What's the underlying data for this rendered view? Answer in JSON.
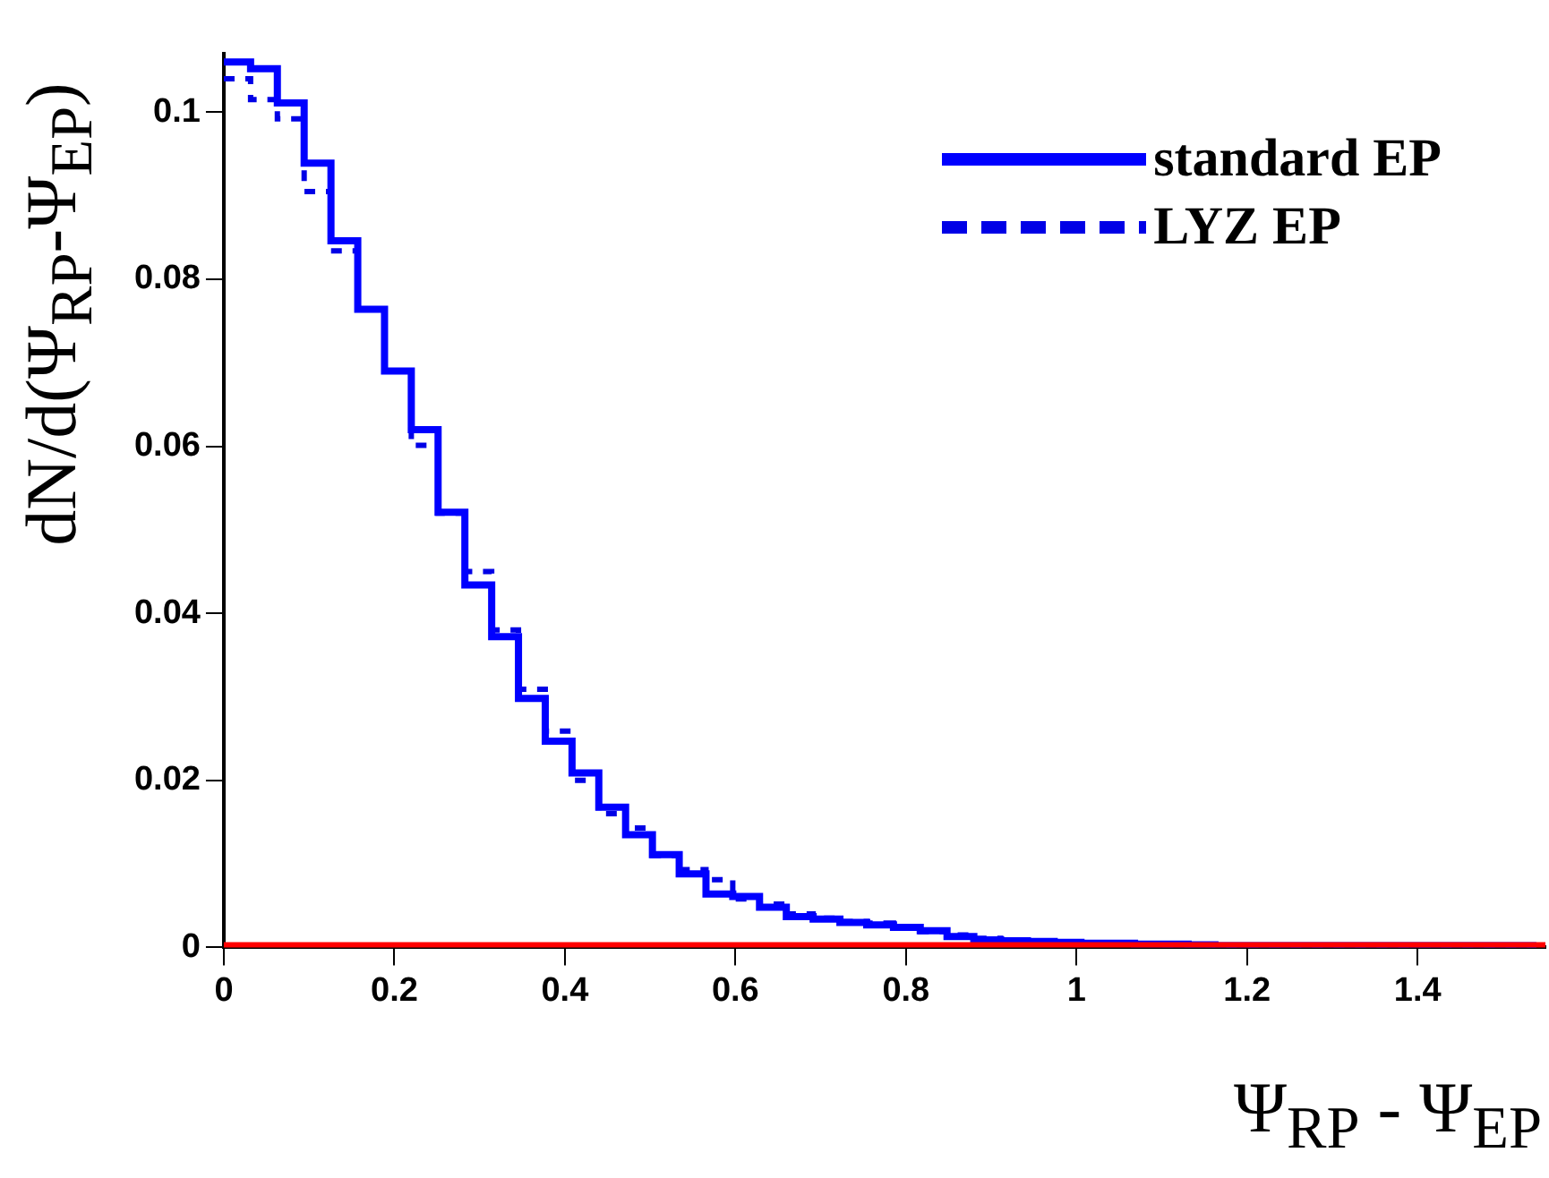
{
  "chart_data": {
    "type": "histogram",
    "xlabel": "Ψ$_{RP}$ - Ψ$_{EP}$",
    "ylabel": "dN/d(Ψ$_{RP}$-Ψ$_{EP}$)",
    "bins": [
      0,
      0.0314,
      0.0628,
      0.0942,
      0.1257,
      0.1571,
      0.1885,
      0.2199,
      0.2513,
      0.2827,
      0.3142,
      0.3456,
      0.377,
      0.4084,
      0.4398,
      0.4712,
      0.5027,
      0.5341,
      0.5655,
      0.5969,
      0.6283,
      0.6597,
      0.6912,
      0.7226,
      0.754,
      0.7854,
      0.8168,
      0.8482,
      0.8796,
      0.9111,
      0.9425,
      0.9739,
      1.0053,
      1.0367,
      1.0681,
      1.0996,
      1.131,
      1.1624,
      1.1938,
      1.2252,
      1.2566,
      1.2881,
      1.3195,
      1.3509,
      1.3823,
      1.4137,
      1.4451,
      1.4765,
      1.508,
      1.5394
    ],
    "series": [
      {
        "name": "standard EP",
        "color": "#0000ff",
        "line_style": "solid",
        "values": [
          0.106,
          0.1052,
          0.1011,
          0.0939,
          0.0846,
          0.0764,
          0.069,
          0.062,
          0.0521,
          0.0434,
          0.0372,
          0.0298,
          0.0247,
          0.0209,
          0.0168,
          0.0135,
          0.0111,
          0.0088,
          0.0064,
          0.0061,
          0.0048,
          0.0037,
          0.0034,
          0.003,
          0.0027,
          0.0024,
          0.002,
          0.0013,
          0.0009,
          0.0008,
          0.0007,
          0.0006,
          0.0005,
          0.0005,
          0.0004,
          0.0004,
          0.0003,
          0.0002,
          0.0002,
          0.0002,
          0.0002,
          0.0002,
          0.0002,
          0.0002,
          0.0002,
          0.0002,
          0.0002,
          0.0002,
          0.0002
        ]
      },
      {
        "name": "LYZ EP",
        "color": "#0000e6",
        "line_style": "dashed",
        "values": [
          0.104,
          0.1015,
          0.0992,
          0.0905,
          0.0834,
          0.0764,
          0.069,
          0.0601,
          0.052,
          0.045,
          0.038,
          0.0309,
          0.0259,
          0.02,
          0.016,
          0.0143,
          0.011,
          0.0093,
          0.0081,
          0.0058,
          0.0052,
          0.004,
          0.0035,
          0.0031,
          0.0029,
          0.0025,
          0.0019,
          0.0015,
          0.0011,
          0.0009,
          0.0007,
          0.0006,
          0.0005,
          0.0005,
          0.0004,
          0.0003,
          0.0003,
          0.0002,
          0.0002,
          0.0002,
          0.0002,
          0.0002,
          0.0002,
          0.0002,
          0.0002,
          0.0002,
          0.0002,
          0.0002,
          0.0002
        ]
      }
    ],
    "ref_lines": [
      {
        "axis": "y",
        "value": 0,
        "color": "#ff0000"
      }
    ],
    "xlim": [
      0,
      1.55
    ],
    "xticks": [
      0,
      0.2,
      0.4,
      0.6,
      0.8,
      1,
      1.2,
      1.4
    ],
    "ylim": [
      0,
      0.107
    ],
    "yticks": [
      0,
      0.02,
      0.04,
      0.06,
      0.08,
      {
        "value": 0.1,
        "label": "0.1"
      }
    ],
    "grid": false,
    "legend": "top right"
  }
}
